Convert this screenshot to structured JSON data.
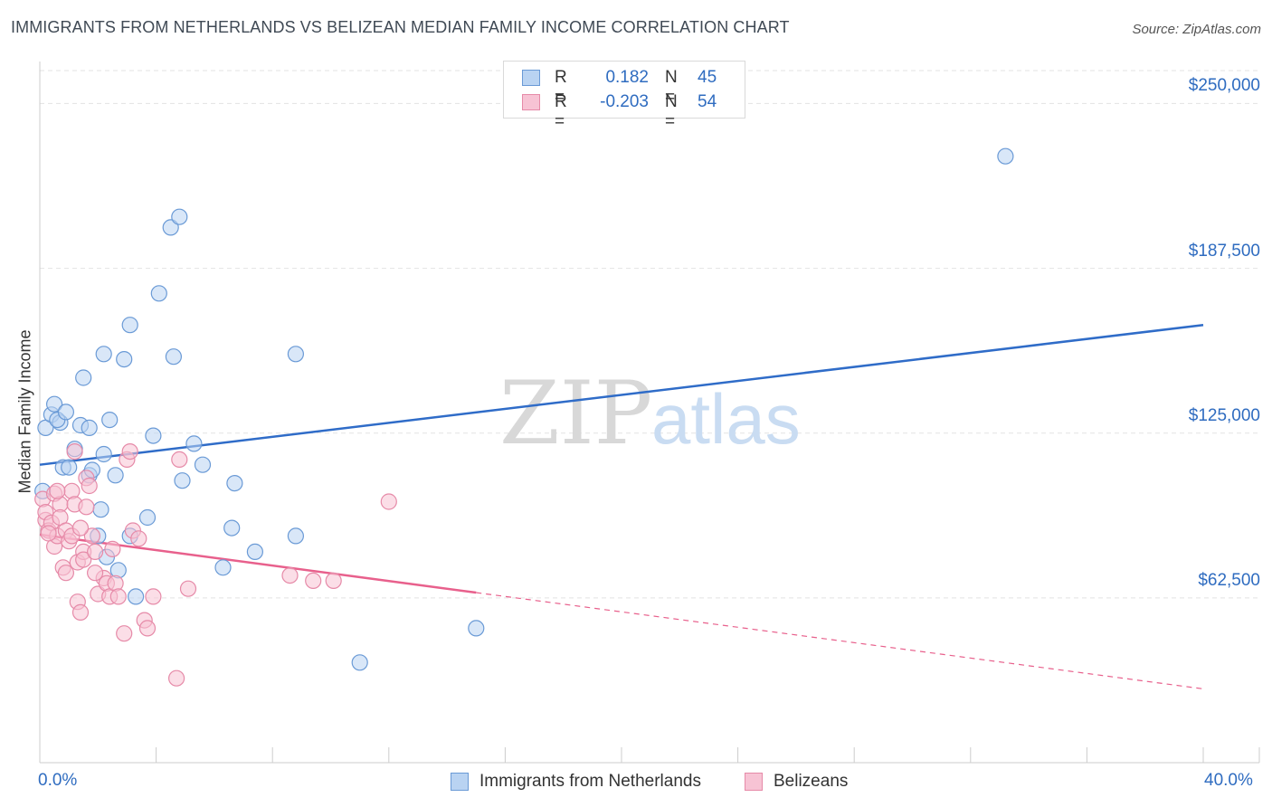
{
  "title": "IMMIGRANTS FROM NETHERLANDS VS BELIZEAN MEDIAN FAMILY INCOME CORRELATION CHART",
  "source": "Source: ZipAtlas.com",
  "watermark": {
    "zip": "ZIP",
    "atlas": "atlas"
  },
  "legend": {
    "r_label": "R =",
    "n_label": "N =",
    "series": [
      {
        "name": "Immigrants from Netherlands",
        "r": "0.182",
        "n": "45"
      },
      {
        "name": "Belizeans",
        "r": "-0.203",
        "n": "54"
      }
    ]
  },
  "colors": {
    "blue_fill": "#b9d3f2",
    "blue_stroke": "#6a9ad6",
    "blue_line": "#2f6cc8",
    "pink_fill": "#f7c3d4",
    "pink_stroke": "#e68aa8",
    "pink_line": "#e8608c",
    "grid": "#e3e3e3",
    "axis_label": "#2f6cc0"
  },
  "chart_data": {
    "type": "scatter",
    "title": "IMMIGRANTS FROM NETHERLANDS VS BELIZEAN MEDIAN FAMILY INCOME CORRELATION CHART",
    "xlabel": "",
    "ylabel": "Median Family Income",
    "xlim": [
      0,
      40
    ],
    "ylim": [
      0,
      262500
    ],
    "x_tick_labels": [
      "0.0%",
      "40.0%"
    ],
    "y_ticks": [
      62500,
      125000,
      187500,
      250000
    ],
    "y_tick_labels": [
      "$62,500",
      "$125,000",
      "$187,500",
      "$250,000"
    ],
    "series": [
      {
        "name": "Immigrants from Netherlands",
        "trend": {
          "x": [
            0,
            40
          ],
          "y": [
            113000,
            166000
          ],
          "dashed_to": null
        },
        "points": [
          [
            0.2,
            127000
          ],
          [
            0.4,
            132000
          ],
          [
            0.5,
            136000
          ],
          [
            0.7,
            129000
          ],
          [
            0.6,
            130000
          ],
          [
            0.9,
            133000
          ],
          [
            0.8,
            112000
          ],
          [
            1.0,
            112000
          ],
          [
            1.2,
            119000
          ],
          [
            1.4,
            128000
          ],
          [
            1.5,
            146000
          ],
          [
            1.7,
            127000
          ],
          [
            1.7,
            109000
          ],
          [
            1.8,
            111000
          ],
          [
            2.1,
            96000
          ],
          [
            2.0,
            86000
          ],
          [
            2.2,
            117000
          ],
          [
            2.2,
            155000
          ],
          [
            2.3,
            78000
          ],
          [
            2.4,
            130000
          ],
          [
            2.6,
            109000
          ],
          [
            2.7,
            73000
          ],
          [
            2.9,
            153000
          ],
          [
            3.1,
            86000
          ],
          [
            3.1,
            166000
          ],
          [
            3.3,
            63000
          ],
          [
            3.7,
            93000
          ],
          [
            3.9,
            124000
          ],
          [
            4.1,
            178000
          ],
          [
            4.5,
            203000
          ],
          [
            4.6,
            154000
          ],
          [
            4.8,
            207000
          ],
          [
            4.9,
            107000
          ],
          [
            5.3,
            121000
          ],
          [
            5.6,
            113000
          ],
          [
            6.3,
            74000
          ],
          [
            6.6,
            89000
          ],
          [
            6.7,
            106000
          ],
          [
            7.4,
            80000
          ],
          [
            8.8,
            86000
          ],
          [
            8.8,
            155000
          ],
          [
            11.0,
            38000
          ],
          [
            15.0,
            51000
          ],
          [
            33.2,
            230000
          ],
          [
            0.1,
            103000
          ]
        ]
      },
      {
        "name": "Belizeans",
        "trend": {
          "x": [
            0,
            15
          ],
          "y": [
            86500,
            64500
          ],
          "dashed_to": {
            "x": 40,
            "y": 28000
          }
        },
        "points": [
          [
            0.1,
            100000
          ],
          [
            0.2,
            92000
          ],
          [
            0.2,
            95000
          ],
          [
            0.3,
            88000
          ],
          [
            0.4,
            91000
          ],
          [
            0.5,
            102000
          ],
          [
            0.5,
            82000
          ],
          [
            0.6,
            86000
          ],
          [
            0.7,
            98000
          ],
          [
            0.7,
            93000
          ],
          [
            0.8,
            74000
          ],
          [
            0.9,
            72000
          ],
          [
            0.9,
            88000
          ],
          [
            1.0,
            84000
          ],
          [
            1.1,
            103000
          ],
          [
            1.1,
            86000
          ],
          [
            1.2,
            98000
          ],
          [
            1.2,
            118000
          ],
          [
            1.3,
            76000
          ],
          [
            1.3,
            61000
          ],
          [
            1.4,
            57000
          ],
          [
            1.5,
            80000
          ],
          [
            1.5,
            77000
          ],
          [
            1.6,
            108000
          ],
          [
            1.6,
            97000
          ],
          [
            1.7,
            105000
          ],
          [
            1.8,
            86000
          ],
          [
            1.9,
            80000
          ],
          [
            2.0,
            64000
          ],
          [
            2.2,
            70000
          ],
          [
            2.3,
            68000
          ],
          [
            2.4,
            63000
          ],
          [
            2.5,
            81000
          ],
          [
            2.6,
            68000
          ],
          [
            2.7,
            63000
          ],
          [
            2.9,
            49000
          ],
          [
            3.0,
            115000
          ],
          [
            3.1,
            118000
          ],
          [
            3.2,
            88000
          ],
          [
            3.4,
            85000
          ],
          [
            3.6,
            54000
          ],
          [
            3.7,
            51000
          ],
          [
            3.9,
            63000
          ],
          [
            4.7,
            32000
          ],
          [
            4.8,
            115000
          ],
          [
            5.1,
            66000
          ],
          [
            8.6,
            71000
          ],
          [
            9.4,
            69000
          ],
          [
            10.1,
            69000
          ],
          [
            12.0,
            99000
          ],
          [
            0.3,
            87000
          ],
          [
            0.6,
            103000
          ],
          [
            1.9,
            72000
          ],
          [
            1.4,
            89000
          ]
        ]
      }
    ]
  }
}
